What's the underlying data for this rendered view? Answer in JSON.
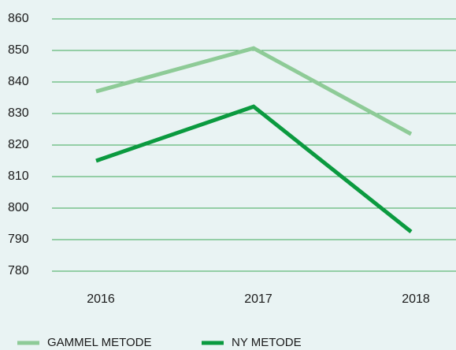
{
  "chart_data": {
    "type": "line",
    "categories": [
      "2016",
      "2017",
      "2018"
    ],
    "series": [
      {
        "name": "GAMMEL METODE",
        "color": "#8ecb97",
        "values": [
          837,
          850.7,
          823.5
        ]
      },
      {
        "name": "NY METODE",
        "color": "#0b9a3f",
        "values": [
          815,
          832.2,
          792.5
        ]
      }
    ],
    "ylim": [
      780,
      860
    ],
    "yticks": [
      780,
      790,
      800,
      810,
      820,
      830,
      840,
      850,
      860
    ],
    "grid": true,
    "legend": "bottom"
  }
}
